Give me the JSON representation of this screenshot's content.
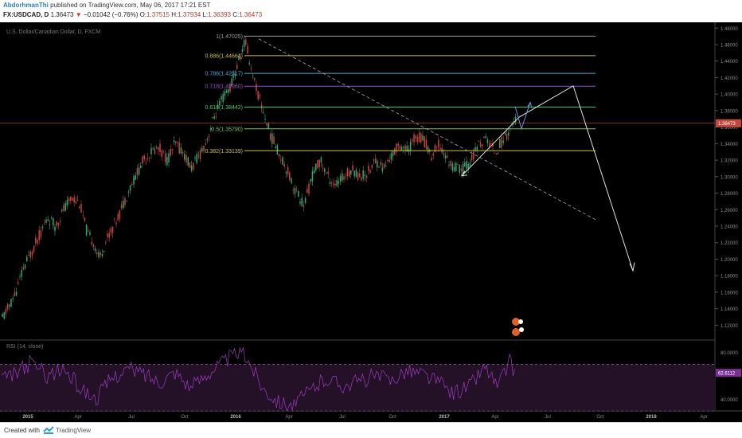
{
  "header": {
    "author": "AbdorhmanThi",
    "published": "published on TradingView.com, May 06, 2017 17:21 EST",
    "symbol": "FX:USDCAD, D",
    "last": "1.36473",
    "change": "−0.01042 (−0.76%)",
    "open_label": "O:",
    "open": "1.37515",
    "high_label": "H:",
    "high": "1.37934",
    "low_label": "L:",
    "low": "1.36393",
    "close_label": "C:",
    "close": "1.36473"
  },
  "footer": {
    "created": "Created with",
    "brand": "TradingView"
  },
  "chart_data": {
    "type": "candlestick",
    "instrument_label": "U.S. Dollar/Canadian Dollar, D, FXCM",
    "price_axis": {
      "ylim": [
        1.103,
        1.487
      ],
      "ticks": [
        "1.48000",
        "1.46000",
        "1.44000",
        "1.42000",
        "1.40000",
        "1.38000",
        "1.36000",
        "1.34000",
        "1.32000",
        "1.30000",
        "1.28000",
        "1.26000",
        "1.24000",
        "1.22000",
        "1.20000",
        "1.18000",
        "1.16000",
        "1.14000",
        "1.12000"
      ],
      "current_price": "1.36473"
    },
    "time_axis": {
      "labels": [
        "2015",
        "Apr",
        "Jul",
        "Oct",
        "2016",
        "Apr",
        "Jul",
        "Oct",
        "2017",
        "Apr",
        "Jul",
        "Oct",
        "2018",
        "Apr"
      ],
      "bold": [
        "2015",
        "2016",
        "2017",
        "2018"
      ]
    },
    "price_path": [
      [
        0,
        1.123
      ],
      [
        10,
        1.14
      ],
      [
        20,
        1.16
      ],
      [
        30,
        1.19
      ],
      [
        40,
        1.21
      ],
      [
        50,
        1.23
      ],
      [
        60,
        1.25
      ],
      [
        70,
        1.24
      ],
      [
        80,
        1.26
      ],
      [
        90,
        1.275
      ],
      [
        100,
        1.268
      ],
      [
        110,
        1.23
      ],
      [
        118,
        1.22
      ],
      [
        125,
        1.2
      ],
      [
        132,
        1.22
      ],
      [
        140,
        1.235
      ],
      [
        150,
        1.255
      ],
      [
        160,
        1.28
      ],
      [
        170,
        1.3
      ],
      [
        180,
        1.32
      ],
      [
        190,
        1.33
      ],
      [
        200,
        1.335
      ],
      [
        210,
        1.32
      ],
      [
        220,
        1.34
      ],
      [
        230,
        1.33
      ],
      [
        240,
        1.31
      ],
      [
        250,
        1.325
      ],
      [
        260,
        1.345
      ],
      [
        270,
        1.375
      ],
      [
        280,
        1.395
      ],
      [
        290,
        1.41
      ],
      [
        300,
        1.44
      ],
      [
        308,
        1.465
      ],
      [
        316,
        1.43
      ],
      [
        324,
        1.4
      ],
      [
        332,
        1.375
      ],
      [
        340,
        1.35
      ],
      [
        350,
        1.33
      ],
      [
        360,
        1.31
      ],
      [
        370,
        1.285
      ],
      [
        382,
        1.265
      ],
      [
        392,
        1.3
      ],
      [
        402,
        1.32
      ],
      [
        412,
        1.3
      ],
      [
        422,
        1.29
      ],
      [
        432,
        1.3
      ],
      [
        442,
        1.31
      ],
      [
        452,
        1.3
      ],
      [
        462,
        1.305
      ],
      [
        472,
        1.32
      ],
      [
        482,
        1.31
      ],
      [
        492,
        1.325
      ],
      [
        502,
        1.34
      ],
      [
        512,
        1.33
      ],
      [
        522,
        1.35
      ],
      [
        532,
        1.345
      ],
      [
        542,
        1.325
      ],
      [
        552,
        1.34
      ],
      [
        562,
        1.32
      ],
      [
        572,
        1.31
      ],
      [
        582,
        1.31
      ],
      [
        592,
        1.32
      ],
      [
        602,
        1.34
      ],
      [
        612,
        1.345
      ],
      [
        622,
        1.33
      ],
      [
        632,
        1.345
      ],
      [
        642,
        1.36
      ],
      [
        648,
        1.37
      ]
    ],
    "fibonacci_levels": [
      {
        "label": "1(1.47025)",
        "level": 1.47025,
        "color": "#9e9e9e"
      },
      {
        "label": "0.886(1.44664)",
        "level": 1.44664,
        "color": "#c9c14a"
      },
      {
        "label": "0.786(1.42517)",
        "level": 1.42517,
        "color": "#4aa9d8"
      },
      {
        "label": "0.718(1.40960)",
        "level": 1.4096,
        "color": "#a04ac9"
      },
      {
        "label": "0.618(1.38442)",
        "level": 1.38442,
        "color": "#4ac96b"
      },
      {
        "label": "0.5(1.35790)",
        "level": 1.3579,
        "color": "#7ac94a"
      },
      {
        "label": "0.382(1.33139)",
        "level": 1.33139,
        "color": "#c9c14a"
      }
    ],
    "rsi": {
      "label": "RSI (14, close)",
      "ylim": [
        30,
        90
      ],
      "ticks": [
        "80.0000",
        "40.0000"
      ],
      "upper_band": 70,
      "lower_band": 30,
      "current": "62.6112",
      "path": [
        [
          0,
          55
        ],
        [
          20,
          62
        ],
        [
          40,
          72
        ],
        [
          60,
          60
        ],
        [
          80,
          66
        ],
        [
          100,
          50
        ],
        [
          120,
          40
        ],
        [
          140,
          58
        ],
        [
          160,
          66
        ],
        [
          180,
          62
        ],
        [
          200,
          55
        ],
        [
          220,
          64
        ],
        [
          240,
          50
        ],
        [
          260,
          62
        ],
        [
          280,
          72
        ],
        [
          300,
          80
        ],
        [
          310,
          76
        ],
        [
          330,
          50
        ],
        [
          350,
          38
        ],
        [
          370,
          35
        ],
        [
          390,
          48
        ],
        [
          410,
          58
        ],
        [
          430,
          52
        ],
        [
          450,
          55
        ],
        [
          470,
          60
        ],
        [
          490,
          56
        ],
        [
          510,
          65
        ],
        [
          530,
          62
        ],
        [
          550,
          55
        ],
        [
          570,
          45
        ],
        [
          590,
          52
        ],
        [
          610,
          68
        ],
        [
          625,
          50
        ],
        [
          640,
          72
        ],
        [
          648,
          62
        ]
      ]
    }
  }
}
